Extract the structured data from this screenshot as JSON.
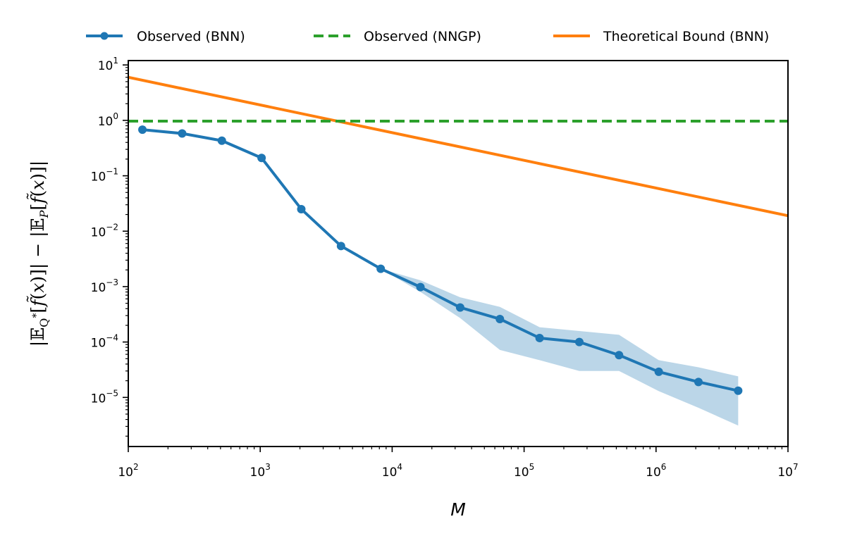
{
  "chart_data": {
    "type": "line",
    "title": "",
    "xlabel": "M",
    "ylabel": "|𝔼_{Q*}[f̃(x)]| − |𝔼_P[f̃(x)]|",
    "xscale": "log",
    "yscale": "log",
    "xlim": [
      100,
      10000000
    ],
    "ylim": [
      1.3e-06,
      12
    ],
    "x_tick_exponents": [
      2,
      3,
      4,
      5,
      6,
      7
    ],
    "y_tick_exponents": [
      1,
      0,
      -1,
      -2,
      -3,
      -4,
      -5
    ],
    "legend_placement": "top, above plot",
    "grid": false,
    "series": [
      {
        "name": "Observed (BNN)",
        "style": "line-with-markers",
        "color": "#1f77b4",
        "x": [
          128,
          256,
          512,
          1024,
          2048,
          4096,
          8192,
          16384,
          32768,
          65536,
          131072,
          262144,
          524288,
          1048576,
          2097152,
          4194304
        ],
        "y": [
          0.68,
          0.58,
          0.43,
          0.21,
          0.025,
          0.0054,
          0.0021,
          0.00098,
          0.00042,
          0.00026,
          0.000118,
          0.0001,
          5.8e-05,
          2.9e-05,
          1.9e-05,
          1.32e-05
        ],
        "band_lower": [
          0.68,
          0.58,
          0.43,
          0.21,
          0.025,
          0.0054,
          0.0021,
          0.0008,
          0.00027,
          7.2e-05,
          4.7e-05,
          3e-05,
          3e-05,
          1.3e-05,
          6.5e-06,
          3.1e-06
        ],
        "band_upper": [
          0.68,
          0.58,
          0.43,
          0.21,
          0.025,
          0.0054,
          0.0021,
          0.0013,
          0.00064,
          0.00043,
          0.000185,
          0.000158,
          0.000135,
          4.7e-05,
          3.5e-05,
          2.4e-05
        ]
      },
      {
        "name": "Observed (NNGP)",
        "style": "dashed",
        "color": "#2ca02c",
        "x": [
          100,
          10000000
        ],
        "y": [
          0.97,
          0.97
        ]
      },
      {
        "name": "Theoretical Bound (BNN)",
        "style": "solid",
        "color": "#ff7f0e",
        "x": [
          100,
          10000000
        ],
        "y": [
          6.0,
          0.019
        ]
      }
    ]
  }
}
